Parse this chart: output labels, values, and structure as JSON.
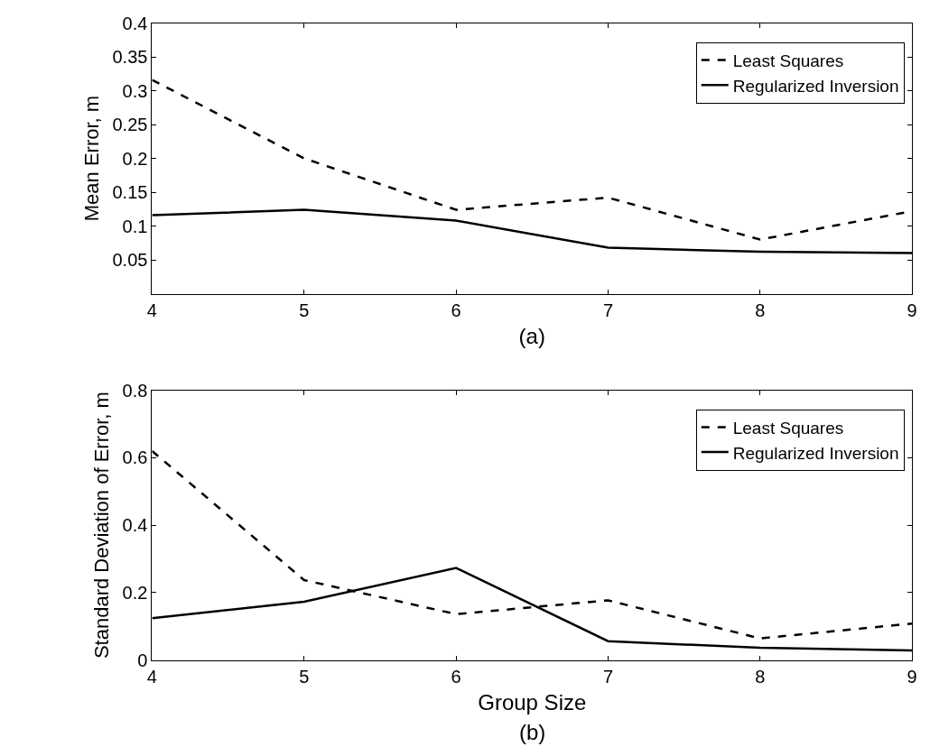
{
  "chart_data": [
    {
      "type": "line",
      "xlabel": "(a)",
      "ylabel": "Mean Error, m",
      "x": [
        4,
        5,
        6,
        7,
        8,
        9
      ],
      "xlim": [
        4,
        9
      ],
      "xticks": [
        4,
        5,
        6,
        7,
        8,
        9
      ],
      "ylim": [
        0,
        0.4
      ],
      "yticks": [
        0.05,
        0.1,
        0.15,
        0.2,
        0.25,
        0.3,
        0.35,
        0.4
      ],
      "legend": "top right",
      "series": [
        {
          "name": "Least Squares",
          "color": "#000000",
          "line_style": "dashed",
          "values": [
            0.316,
            0.2,
            0.124,
            0.142,
            0.08,
            0.122
          ]
        },
        {
          "name": "Regularized Inversion",
          "color": "#000000",
          "line_style": "solid",
          "values": [
            0.116,
            0.124,
            0.108,
            0.068,
            0.062,
            0.06
          ]
        }
      ]
    },
    {
      "type": "line",
      "xlabel": "Group Size",
      "ylabel": "Standard Deviation of Error, m",
      "annotations": [
        "(b)"
      ],
      "x": [
        4,
        5,
        6,
        7,
        8,
        9
      ],
      "xlim": [
        4,
        9
      ],
      "xticks": [
        4,
        5,
        6,
        7,
        8,
        9
      ],
      "ylim": [
        0,
        0.8
      ],
      "yticks": [
        0,
        0.2,
        0.4,
        0.6,
        0.8
      ],
      "legend": "top right",
      "series": [
        {
          "name": "Least Squares",
          "color": "#000000",
          "line_style": "dashed",
          "values": [
            0.62,
            0.237,
            0.136,
            0.177,
            0.064,
            0.108
          ]
        },
        {
          "name": "Regularized Inversion",
          "color": "#000000",
          "line_style": "solid",
          "values": [
            0.124,
            0.173,
            0.273,
            0.056,
            0.036,
            0.028
          ]
        }
      ]
    }
  ]
}
